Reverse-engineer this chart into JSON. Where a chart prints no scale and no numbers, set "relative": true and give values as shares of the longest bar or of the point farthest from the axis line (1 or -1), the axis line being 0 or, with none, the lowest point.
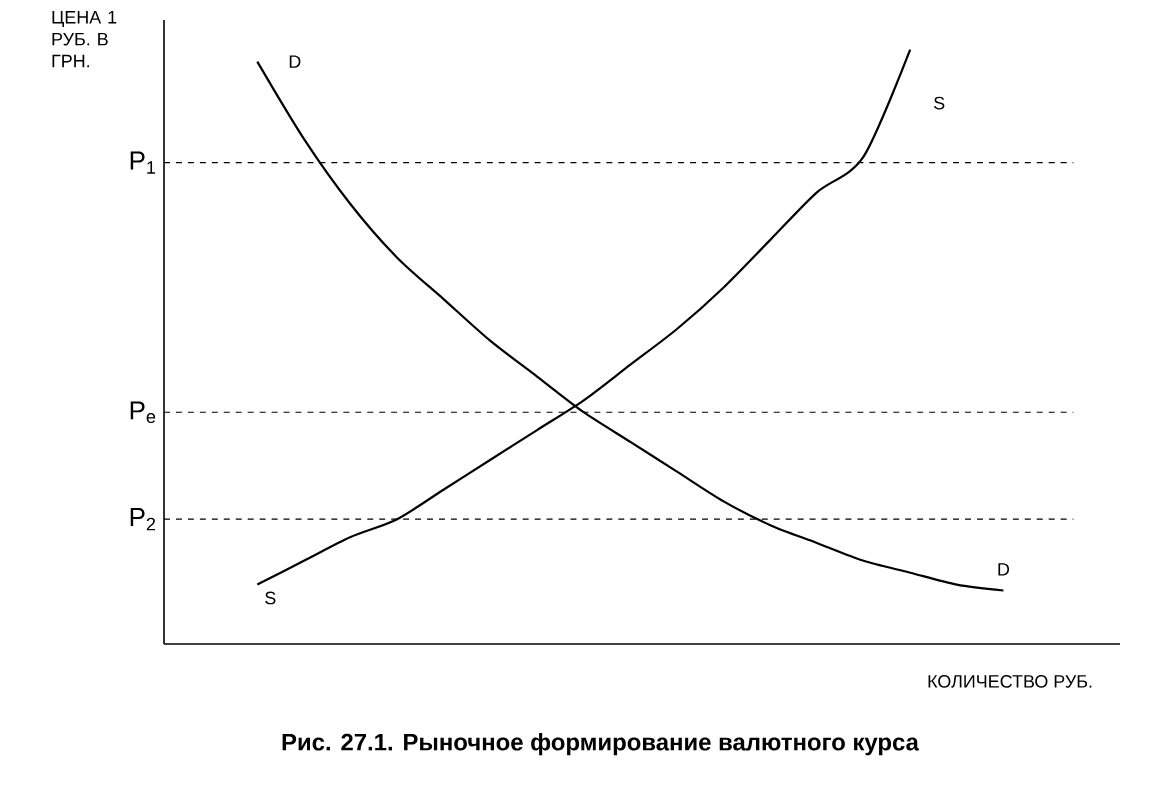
{
  "chart_data": {
    "type": "line",
    "relative": true,
    "title": "**Рис. 27.1. Рыночное формирование валютного курса**",
    "ylabel": "ЦЕНА 1 РУБ. В ГРН.",
    "xlabel": "КОЛИЧЕСТВО РУБ.",
    "categories": [
      null,
      null,
      null,
      null,
      null,
      null,
      null,
      null,
      null,
      null,
      null,
      null,
      null,
      null,
      null,
      null,
      null,
      null,
      null,
      null,
      null
    ],
    "series": [
      {
        "name": "D",
        "color": "#000000",
        "values": [
          null,
          null,
          0.98,
          0.85,
          0.74,
          0.65,
          0.58,
          0.51,
          0.45,
          0.39,
          0.34,
          0.29,
          0.24,
          0.2,
          0.17,
          0.14,
          0.12,
          0.1,
          0.09,
          null,
          null
        ]
      },
      {
        "name": "S",
        "color": "#000000",
        "values": [
          null,
          null,
          0.1,
          0.14,
          0.18,
          0.21,
          0.26,
          0.31,
          0.36,
          0.41,
          0.47,
          0.53,
          0.6,
          0.68,
          0.76,
          0.82,
          1.0,
          null,
          null,
          null,
          null
        ]
      }
    ],
    "ref_lines": [
      {
        "axis": "y",
        "value": 0.81,
        "label": "P$_{1}$",
        "line_style": "dashed"
      },
      {
        "axis": "y",
        "value": 0.39,
        "label": "P$_{e}$",
        "line_style": "dashed"
      },
      {
        "axis": "y",
        "value": 0.21,
        "label": "P$_{2}$",
        "line_style": "dashed"
      }
    ],
    "marker": "none",
    "line_style": "solid"
  }
}
